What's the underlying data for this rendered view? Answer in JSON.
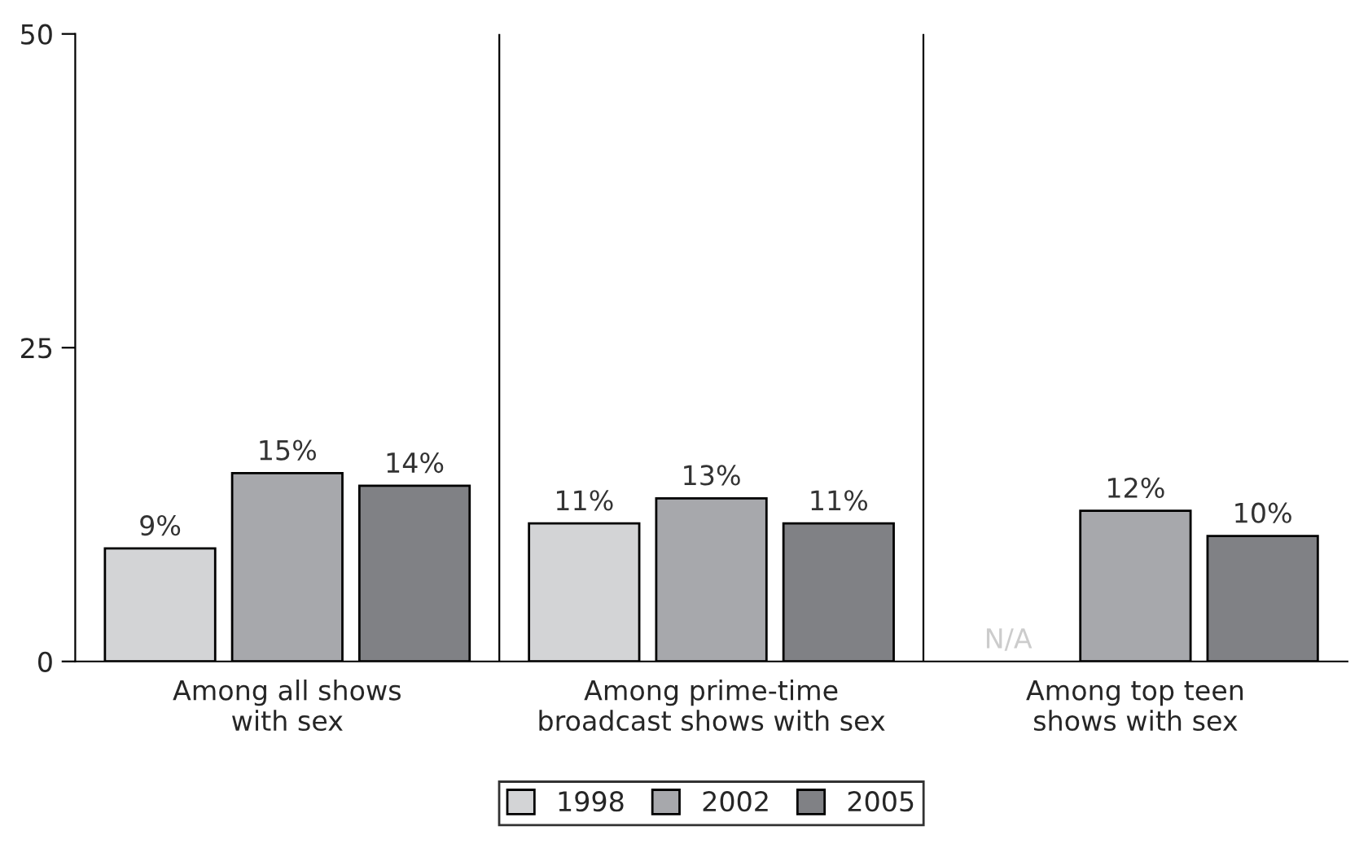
{
  "chart_data": {
    "type": "bar",
    "categories": [
      "Among all shows\nwith sex",
      "Among prime-time\nbroadcast shows with sex",
      "Among top teen\nshows with sex"
    ],
    "series": [
      {
        "name": "1998",
        "color": "#d3d4d6",
        "values": [
          9,
          11,
          null
        ],
        "value_labels": [
          "9%",
          "11%",
          "N/A"
        ]
      },
      {
        "name": "2002",
        "color": "#a7a8ac",
        "values": [
          15,
          13,
          12
        ],
        "value_labels": [
          "15%",
          "13%",
          "12%"
        ]
      },
      {
        "name": "2005",
        "color": "#808185",
        "values": [
          14,
          11,
          10
        ],
        "value_labels": [
          "14%",
          "11%",
          "10%"
        ]
      }
    ],
    "ylim": [
      0,
      50
    ],
    "yticks": [
      0,
      25,
      50
    ],
    "grid": "x",
    "legend": "bottom"
  }
}
